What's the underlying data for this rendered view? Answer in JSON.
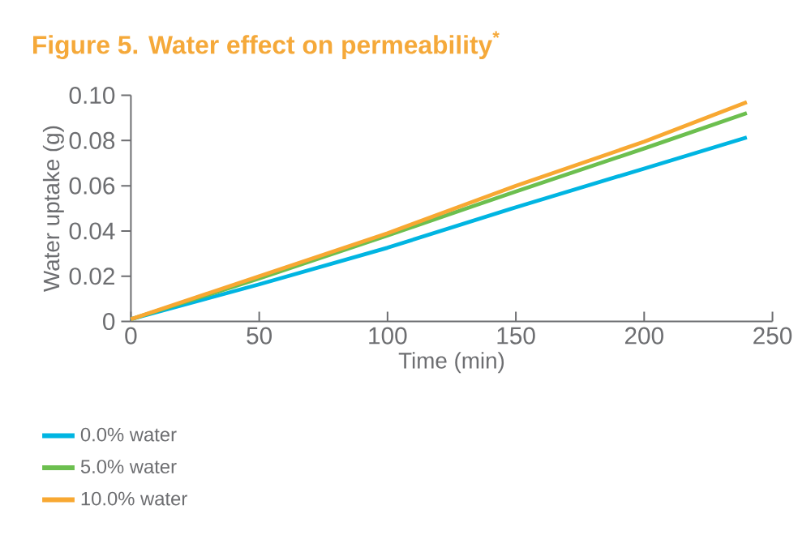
{
  "chart_data": {
    "type": "line",
    "title": "Figure 5. Water effect on permeability$^{*}$",
    "xlabel": "Time (min)",
    "ylabel": "Water uptake (g)",
    "x": [
      0,
      50,
      100,
      150,
      200,
      240
    ],
    "series": [
      {
        "name": "0.0% water",
        "color": "#00b5e2",
        "values": [
          0.001,
          0.0164,
          0.0326,
          0.0505,
          0.0676,
          0.0814
        ]
      },
      {
        "name": "5.0% water",
        "color": "#6cbf4f",
        "values": [
          0.001,
          0.019,
          0.038,
          0.0575,
          0.0765,
          0.0921
        ]
      },
      {
        "name": "10.0% water",
        "color": "#f8a832",
        "values": [
          0.001,
          0.02,
          0.039,
          0.06,
          0.0795,
          0.097
        ]
      }
    ],
    "xlim": [
      0,
      250
    ],
    "ylim": [
      0,
      0.1
    ],
    "xticks": [
      0,
      50,
      100,
      150,
      200,
      250
    ],
    "yticks": [
      0,
      {
        "value": 0.02,
        "label": "0.02"
      },
      {
        "value": 0.04,
        "label": "0.04"
      },
      {
        "value": 0.06,
        "label": "0.06"
      },
      {
        "value": 0.08,
        "label": "0.08"
      },
      {
        "value": 0.1,
        "label": "0.10"
      }
    ],
    "grid": false,
    "legend": "bottom",
    "marker": "none",
    "line_style": "solid"
  }
}
